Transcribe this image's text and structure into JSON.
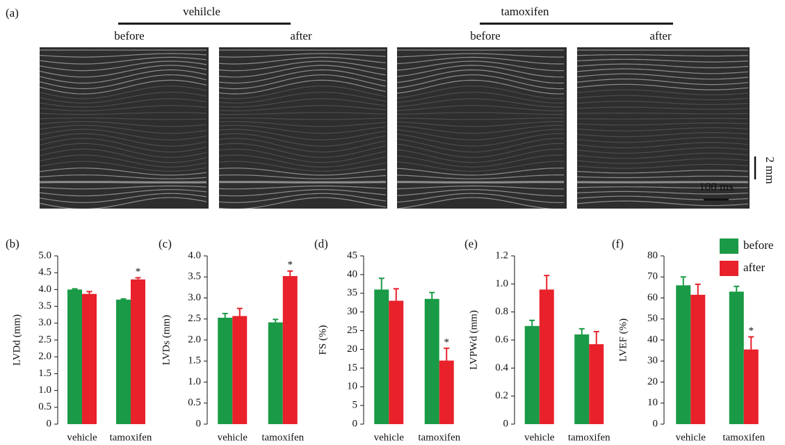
{
  "panel_a": {
    "label": "(a)",
    "groups": [
      {
        "name": "vehilcle",
        "conditions": [
          "before",
          "after"
        ]
      },
      {
        "name": "tamoxifen",
        "conditions": [
          "before",
          "after"
        ]
      }
    ],
    "scale_vertical": "2 mm",
    "scale_horizontal": "100 ms"
  },
  "legend": {
    "position": "upper right",
    "entries": [
      {
        "name": "before",
        "color": "#1a9a46"
      },
      {
        "name": "after",
        "color": "#e8212b"
      }
    ]
  },
  "chart_data": [
    {
      "type": "bar",
      "panel": "(b)",
      "ylabel": "LVDd (mm)",
      "categories": [
        "vehicle",
        "tamoxifen"
      ],
      "series": [
        {
          "color": "#1a9a46",
          "values": [
            4.0,
            3.7
          ],
          "errors": [
            0.02,
            0.02
          ]
        },
        {
          "color": "#e8212b",
          "values": [
            3.87,
            4.3
          ],
          "errors": [
            0.07,
            0.05
          ],
          "annotations": [
            null,
            "*"
          ]
        }
      ],
      "ylim": [
        0,
        5.0
      ],
      "yticks": [
        0,
        0.5,
        {
          "value": 1,
          "label": "1.0"
        },
        1.5,
        {
          "value": 2,
          "label": "2.0"
        },
        2.5,
        {
          "value": 3,
          "label": "3.0"
        },
        3.5,
        {
          "value": 4,
          "label": "4.0"
        },
        4.5,
        {
          "value": 5,
          "label": "5.0"
        }
      ]
    },
    {
      "type": "bar",
      "panel": "(c)",
      "ylabel": "LVDs (mm)",
      "categories": [
        "vehicle",
        "tamoxifen"
      ],
      "series": [
        {
          "color": "#1a9a46",
          "values": [
            2.53,
            2.42
          ],
          "errors": [
            0.1,
            0.07
          ]
        },
        {
          "color": "#e8212b",
          "values": [
            2.57,
            3.52
          ],
          "errors": [
            0.18,
            0.12
          ],
          "annotations": [
            null,
            "*"
          ]
        }
      ],
      "ylim": [
        0,
        4.0
      ],
      "yticks": [
        0,
        0.5,
        {
          "value": 1,
          "label": "1.0"
        },
        1.5,
        {
          "value": 2,
          "label": "2.0"
        },
        2.5,
        {
          "value": 3,
          "label": "3.0"
        },
        3.5,
        {
          "value": 4,
          "label": "4.0"
        }
      ]
    },
    {
      "type": "bar",
      "panel": "(d)",
      "ylabel": "FS (%)",
      "categories": [
        "vehicle",
        "tamoxifen"
      ],
      "series": [
        {
          "color": "#1a9a46",
          "values": [
            36,
            33.5
          ],
          "errors": [
            3,
            1.7
          ]
        },
        {
          "color": "#e8212b",
          "values": [
            33,
            17
          ],
          "errors": [
            3.2,
            3.3
          ],
          "annotations": [
            null,
            "*"
          ]
        }
      ],
      "ylim": [
        0,
        45
      ],
      "yticks": [
        0,
        5,
        10,
        15,
        20,
        25,
        30,
        35,
        40,
        45
      ]
    },
    {
      "type": "bar",
      "panel": "(e)",
      "ylabel": "LVPWd (mm)",
      "categories": [
        "vehicle",
        "tamoxifen"
      ],
      "series": [
        {
          "color": "#1a9a46",
          "values": [
            0.7,
            0.64
          ],
          "errors": [
            0.04,
            0.04
          ]
        },
        {
          "color": "#e8212b",
          "values": [
            0.96,
            0.57
          ],
          "errors": [
            0.1,
            0.09
          ]
        }
      ],
      "ylim": [
        0,
        1.2
      ],
      "yticks": [
        0,
        0.2,
        0.4,
        0.6,
        0.8,
        {
          "value": 1,
          "label": "1.0"
        },
        1.2
      ]
    },
    {
      "type": "bar",
      "panel": "(f)",
      "ylabel": "LVEF (%)",
      "categories": [
        "vehicle",
        "tamoxifen"
      ],
      "series": [
        {
          "color": "#1a9a46",
          "values": [
            66,
            63
          ],
          "errors": [
            4,
            2.5
          ]
        },
        {
          "color": "#e8212b",
          "values": [
            61.5,
            35.5
          ],
          "errors": [
            5,
            6
          ],
          "annotations": [
            null,
            "*"
          ]
        }
      ],
      "ylim": [
        0,
        80
      ],
      "yticks": [
        0,
        10,
        20,
        30,
        40,
        50,
        60,
        70,
        80
      ]
    }
  ]
}
